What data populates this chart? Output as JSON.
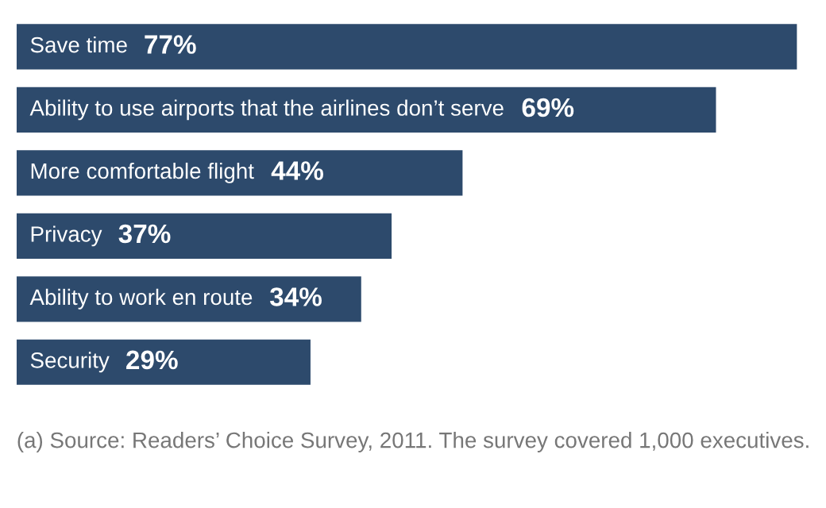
{
  "chart_data": {
    "type": "bar",
    "orientation": "horizontal",
    "categories": [
      "Save time",
      "Ability to use airports that the airlines don’t serve",
      "More comfortable flight",
      "Privacy",
      "Ability to work en route",
      "Security"
    ],
    "values": [
      77,
      69,
      44,
      37,
      34,
      29
    ],
    "value_labels": [
      "77%",
      "69%",
      "44%",
      "37%",
      "34%",
      "29%"
    ],
    "color": "#2d4a6c",
    "annotations": [
      "(a) Source: Readers’ Choice Survey, 2011. The survey covered 1,000 executives."
    ]
  }
}
